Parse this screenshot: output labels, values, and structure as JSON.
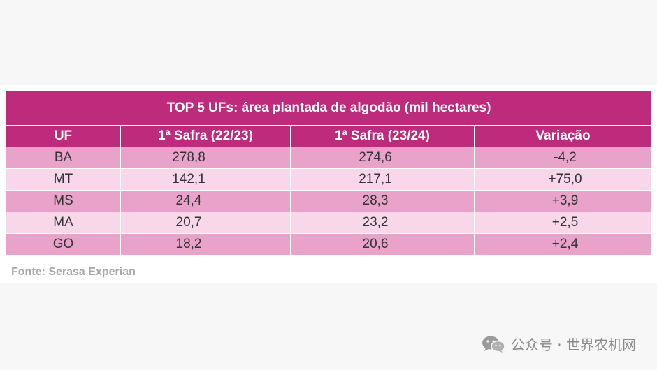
{
  "chart_data": {
    "type": "table",
    "title": "TOP 5 UFs: área plantada de algodão (mil hectares)",
    "columns": [
      "UF",
      "1ª Safra (22/23)",
      "1ª Safra (23/24)",
      "Variação"
    ],
    "rows": [
      [
        "BA",
        "278,8",
        "274,6",
        "-4,2"
      ],
      [
        "MT",
        "142,1",
        "217,1",
        "+75,0"
      ],
      [
        "MS",
        "24,4",
        "28,3",
        "+3,9"
      ],
      [
        "MA",
        "20,7",
        "23,2",
        "+2,5"
      ],
      [
        "GO",
        "18,2",
        "20,6",
        "+2,4"
      ]
    ],
    "source": "Fonte: Serasa Experian",
    "colors": {
      "header": "#be2a7c",
      "row_dark": "#e9a3cb",
      "row_light": "#f7d7e9"
    }
  },
  "watermark": {
    "icon": "wechat-icon",
    "text": "公众号 · 世界农机网"
  }
}
